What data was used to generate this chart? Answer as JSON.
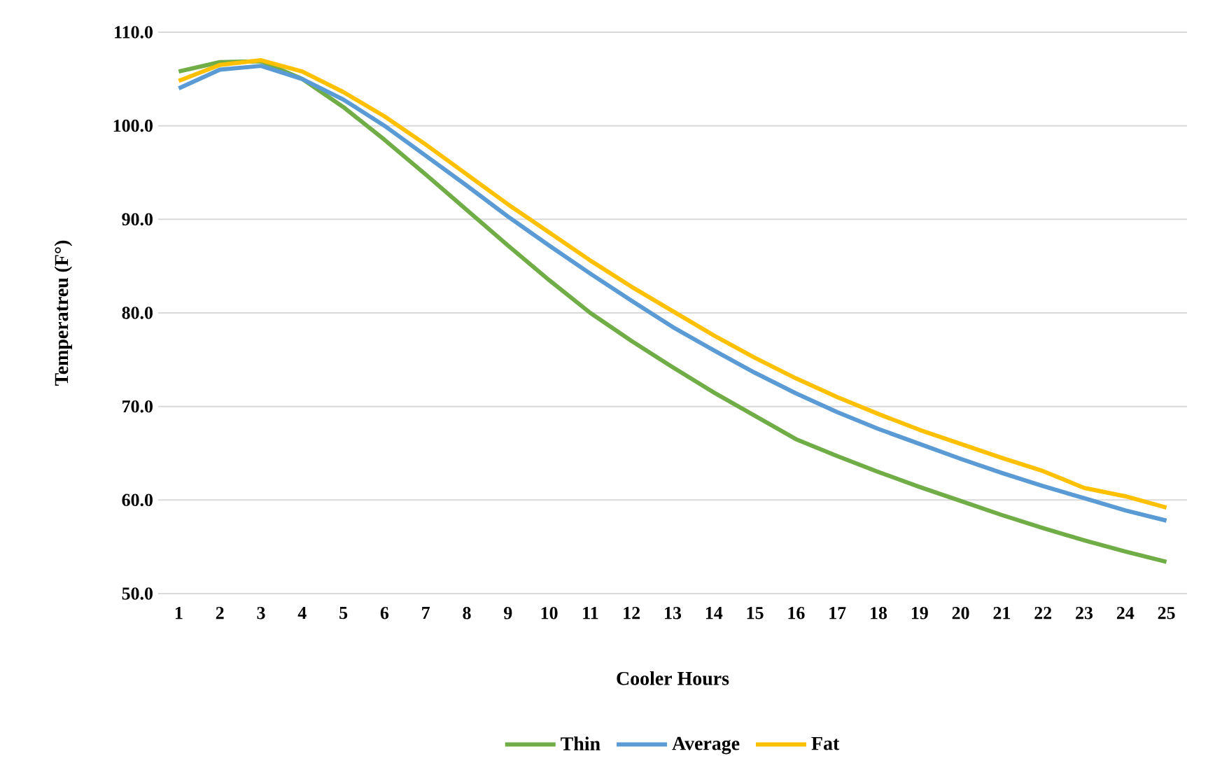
{
  "chart_data": {
    "type": "line",
    "xlabel": "Cooler Hours",
    "ylabel": "Temperatreu (F°)",
    "categories": [
      "1",
      "2",
      "3",
      "4",
      "5",
      "6",
      "7",
      "8",
      "9",
      "10",
      "11",
      "12",
      "13",
      "14",
      "15",
      "16",
      "17",
      "18",
      "19",
      "20",
      "21",
      "22",
      "23",
      "24",
      "25"
    ],
    "series": [
      {
        "name": "Thin",
        "color": "#70ad47",
        "values": [
          105.8,
          106.8,
          106.9,
          105.0,
          102.0,
          98.5,
          94.8,
          91.0,
          87.2,
          83.5,
          80.0,
          77.0,
          74.2,
          71.5,
          69.0,
          66.5,
          64.7,
          63.0,
          61.4,
          59.9,
          58.4,
          57.0,
          55.7,
          54.5,
          53.4
        ]
      },
      {
        "name": "Average",
        "color": "#5b9bd5",
        "values": [
          104.0,
          106.0,
          106.4,
          105.0,
          102.8,
          100.0,
          96.8,
          93.6,
          90.3,
          87.2,
          84.2,
          81.3,
          78.5,
          76.0,
          73.6,
          71.4,
          69.4,
          67.6,
          66.0,
          64.4,
          62.9,
          61.5,
          60.2,
          58.9,
          57.8
        ]
      },
      {
        "name": "Fat",
        "color": "#ffc000",
        "values": [
          104.8,
          106.5,
          107.0,
          105.8,
          103.6,
          101.0,
          98.0,
          94.8,
          91.6,
          88.6,
          85.6,
          82.8,
          80.2,
          77.6,
          75.2,
          73.0,
          71.0,
          69.2,
          67.5,
          66.0,
          64.5,
          63.1,
          61.3,
          60.4,
          59.2
        ]
      }
    ],
    "ylim": [
      50,
      110
    ],
    "yticks": [
      {
        "value": 50,
        "label": "50.0"
      },
      {
        "value": 60,
        "label": "60.0"
      },
      {
        "value": 70,
        "label": "70.0"
      },
      {
        "value": 80,
        "label": "80.0"
      },
      {
        "value": 90,
        "label": "90.0"
      },
      {
        "value": 100,
        "label": "100.0"
      },
      {
        "value": 110,
        "label": "110.0"
      }
    ],
    "grid": "y",
    "legend": "bottom",
    "marker": "none",
    "line_style": "solid"
  }
}
